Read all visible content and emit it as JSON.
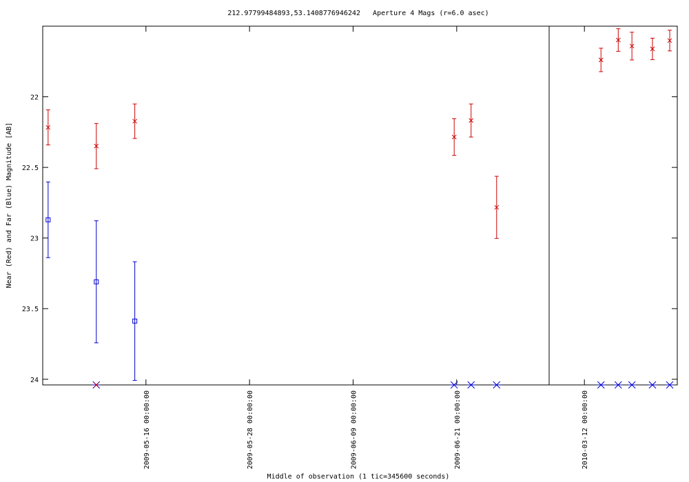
{
  "chart_data": {
    "type": "scatter",
    "title": "212.97799484893,53.1408776946242   Aperture 4 Mags (r=6.0 asec)",
    "x_label": "Middle of observation (1 tic=345600 seconds)",
    "y_label": "Near (Red) and Far (Blue) Magnitude [AB]",
    "ylim": [
      21.5,
      24.04
    ],
    "y_reversed": true,
    "yticks": [
      22,
      22.5,
      23,
      23.5,
      24
    ],
    "x_panels": [
      {
        "xlim": [
          "2009-05-04 01:00:00",
          "2009-07-01 17:00:00"
        ],
        "xticks": [
          "2009-05-16 00:00:00",
          "2009-05-28 00:00:00",
          "2009-06-09 00:00:00",
          "2009-06-21 00:00:00"
        ]
      },
      {
        "xlim": [
          "2010-03-07 22:00:00",
          "2010-03-22 18:00:00"
        ],
        "xticks": [
          "2010-03-12 00:00:00"
        ]
      }
    ],
    "series": [
      {
        "color": "#0000cc",
        "marker": "star",
        "x": [
          "2009-05-10 06:00:00",
          "2009-06-20 17:00:00",
          "2009-06-22 16:00:00",
          "2009-06-25 15:00:00",
          "2010-03-13 22:00:00",
          "2010-03-15 22:00:00",
          "2010-03-17 12:00:00",
          "2010-03-19 21:00:00",
          "2010-03-21 21:00:00"
        ],
        "values": [
          24.04,
          24.04,
          24.04,
          24.04,
          24.04,
          24.04,
          24.04,
          24.04,
          24.04
        ]
      },
      {
        "color": "#cc0000",
        "marker": "x",
        "x": [
          "2009-05-04 16:00:00",
          "2009-05-10 06:00:00",
          "2009-05-14 17:00:00",
          "2009-06-20 17:00:00",
          "2009-06-22 16:00:00",
          "2009-06-25 15:00:00",
          "2010-03-13 22:00:00",
          "2010-03-15 22:00:00",
          "2010-03-17 12:00:00",
          "2010-03-19 21:00:00",
          "2010-03-21 21:00:00"
        ],
        "values": [
          22.217,
          22.349,
          22.173,
          22.285,
          22.168,
          22.783,
          21.739,
          21.598,
          21.641,
          21.661,
          21.602
        ],
        "errors": [
          0.124,
          0.16,
          0.122,
          0.13,
          0.117,
          0.22,
          0.083,
          0.08,
          0.098,
          0.076,
          0.073
        ]
      },
      {
        "color": "#cc0000",
        "marker": "x",
        "x": [
          "2009-05-10 06:00:00"
        ],
        "values": [
          24.04
        ]
      },
      {
        "color": "#0000cc",
        "marker": "square",
        "x": [
          "2009-05-04 16:00:00",
          "2009-05-10 06:00:00",
          "2009-05-14 17:00:00"
        ],
        "values": [
          22.871,
          23.31,
          23.588
        ],
        "errors": [
          0.268,
          0.432,
          0.42
        ]
      }
    ]
  }
}
